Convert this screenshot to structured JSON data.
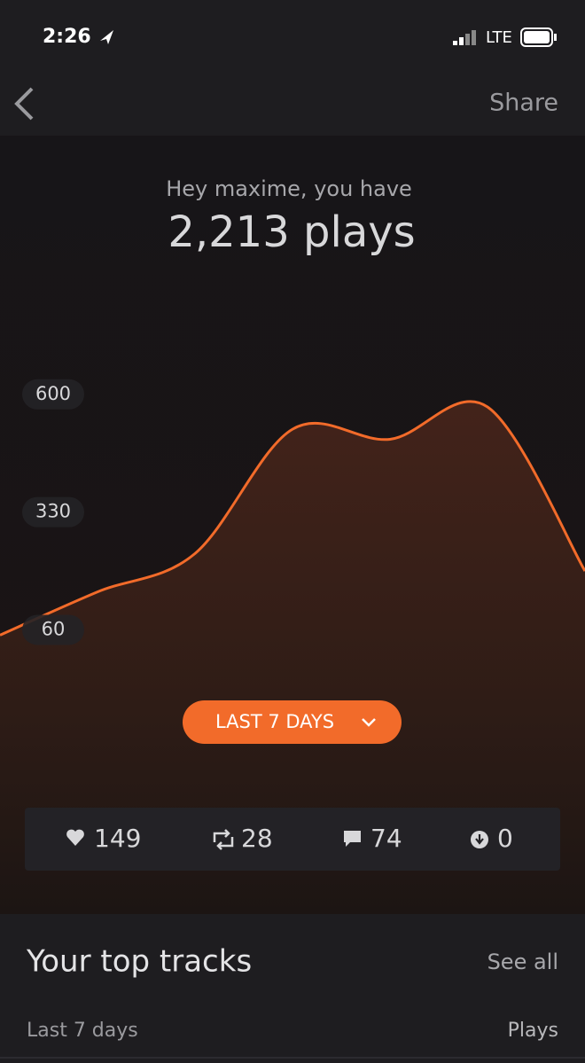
{
  "status_bar": {
    "time": "2:26",
    "network": "LTE"
  },
  "nav": {
    "share": "Share"
  },
  "header": {
    "greeting": "Hey maxime, you have",
    "total": "2,213 plays"
  },
  "chart_data": {
    "type": "area",
    "categories": [
      null,
      null,
      null,
      null,
      null,
      null,
      null
    ],
    "values": [
      48,
      147,
      235,
      520,
      497,
      571,
      195
    ],
    "color": "#f26b2a",
    "ylim": [
      0,
      691
    ],
    "yticks": [
      60,
      330,
      600
    ]
  },
  "range_button": "LAST 7 DAYS",
  "stats": {
    "likes": 149,
    "reposts": 28,
    "comments": 74,
    "downloads": 0
  },
  "top_tracks": {
    "title": "Your top tracks",
    "see_all": "See all",
    "period": "Last 7 days",
    "column": "Plays"
  }
}
